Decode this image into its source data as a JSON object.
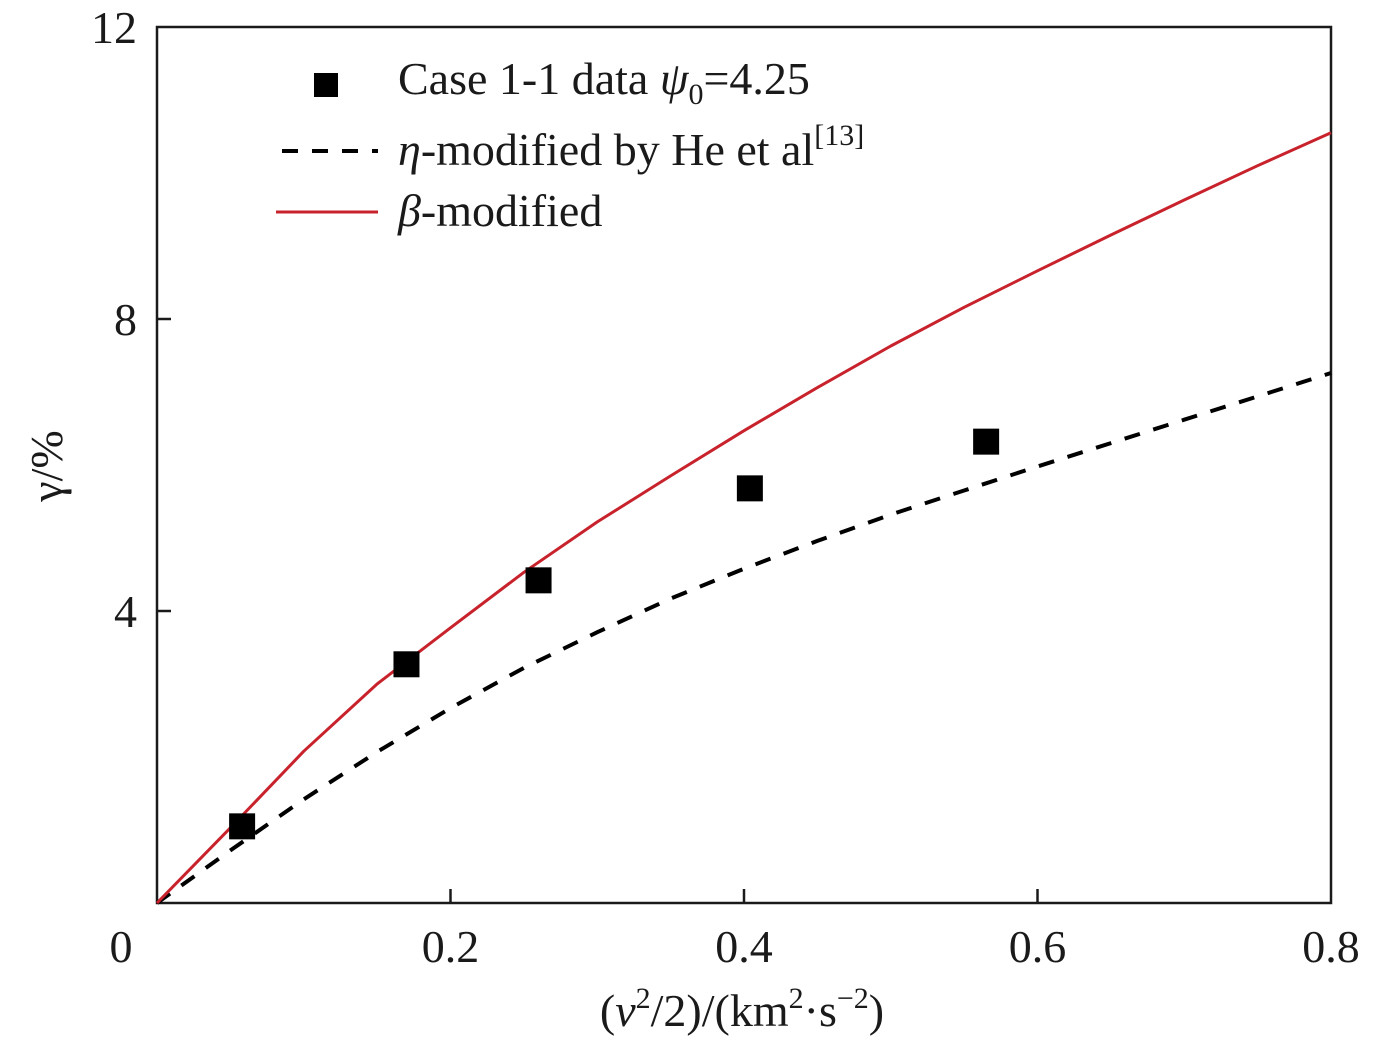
{
  "chart_data": {
    "type": "line",
    "xlabel": {
      "open": "(",
      "v": "v",
      "v_sup": "2",
      "middle": "/2)/(km",
      "km_sup": "2",
      "dot_s": "·s",
      "s_sup": "−2",
      "close": ")"
    },
    "ylabel": "γ/%",
    "xlim": [
      0,
      0.8
    ],
    "ylim": [
      0,
      12
    ],
    "xticks": [
      {
        "value": 0,
        "label": "0"
      },
      {
        "value": 0.2,
        "label": "0.2"
      },
      {
        "value": 0.4,
        "label": "0.4"
      },
      {
        "value": 0.6,
        "label": "0.6"
      },
      {
        "value": 0.8,
        "label": "0.8"
      }
    ],
    "yticks": [
      {
        "value": 4,
        "label": "4"
      },
      {
        "value": 8,
        "label": "8"
      },
      {
        "value": 12,
        "label": "12"
      }
    ],
    "grid": false,
    "legend_position": "top-left",
    "series": [
      {
        "kind": "scatter",
        "marker": "square",
        "color": "#000000",
        "legend": {
          "text": "Case 1-1 data ",
          "greek": "ψ",
          "sub": "0",
          "tail": "=4.25"
        },
        "x": [
          0.058,
          0.17,
          0.26,
          0.404,
          0.565
        ],
        "y": [
          1.05,
          3.27,
          4.42,
          5.68,
          6.32
        ]
      },
      {
        "kind": "line",
        "style": "dashed",
        "color": "#000000",
        "legend": {
          "greek": "η",
          "text": "-modified by He et al",
          "sup": "[13]"
        },
        "x": [
          0,
          0.05,
          0.1,
          0.15,
          0.2,
          0.25,
          0.3,
          0.35,
          0.4,
          0.45,
          0.5,
          0.55,
          0.6,
          0.65,
          0.7,
          0.75,
          0.8
        ],
        "y": [
          0,
          0.72,
          1.42,
          2.07,
          2.67,
          3.22,
          3.71,
          4.17,
          4.58,
          4.96,
          5.32,
          5.65,
          5.98,
          6.3,
          6.62,
          6.94,
          7.26
        ]
      },
      {
        "kind": "line",
        "style": "solid",
        "color": "#c8232c",
        "legend": {
          "greek": "β",
          "text": "-modified"
        },
        "x": [
          0,
          0.05,
          0.1,
          0.15,
          0.2,
          0.25,
          0.3,
          0.35,
          0.4,
          0.45,
          0.5,
          0.55,
          0.6,
          0.65,
          0.7,
          0.75,
          0.8
        ],
        "y": [
          0,
          1.03,
          2.08,
          3.0,
          3.77,
          4.53,
          5.22,
          5.85,
          6.47,
          7.06,
          7.63,
          8.16,
          8.66,
          9.15,
          9.63,
          10.1,
          10.55
        ]
      }
    ]
  }
}
